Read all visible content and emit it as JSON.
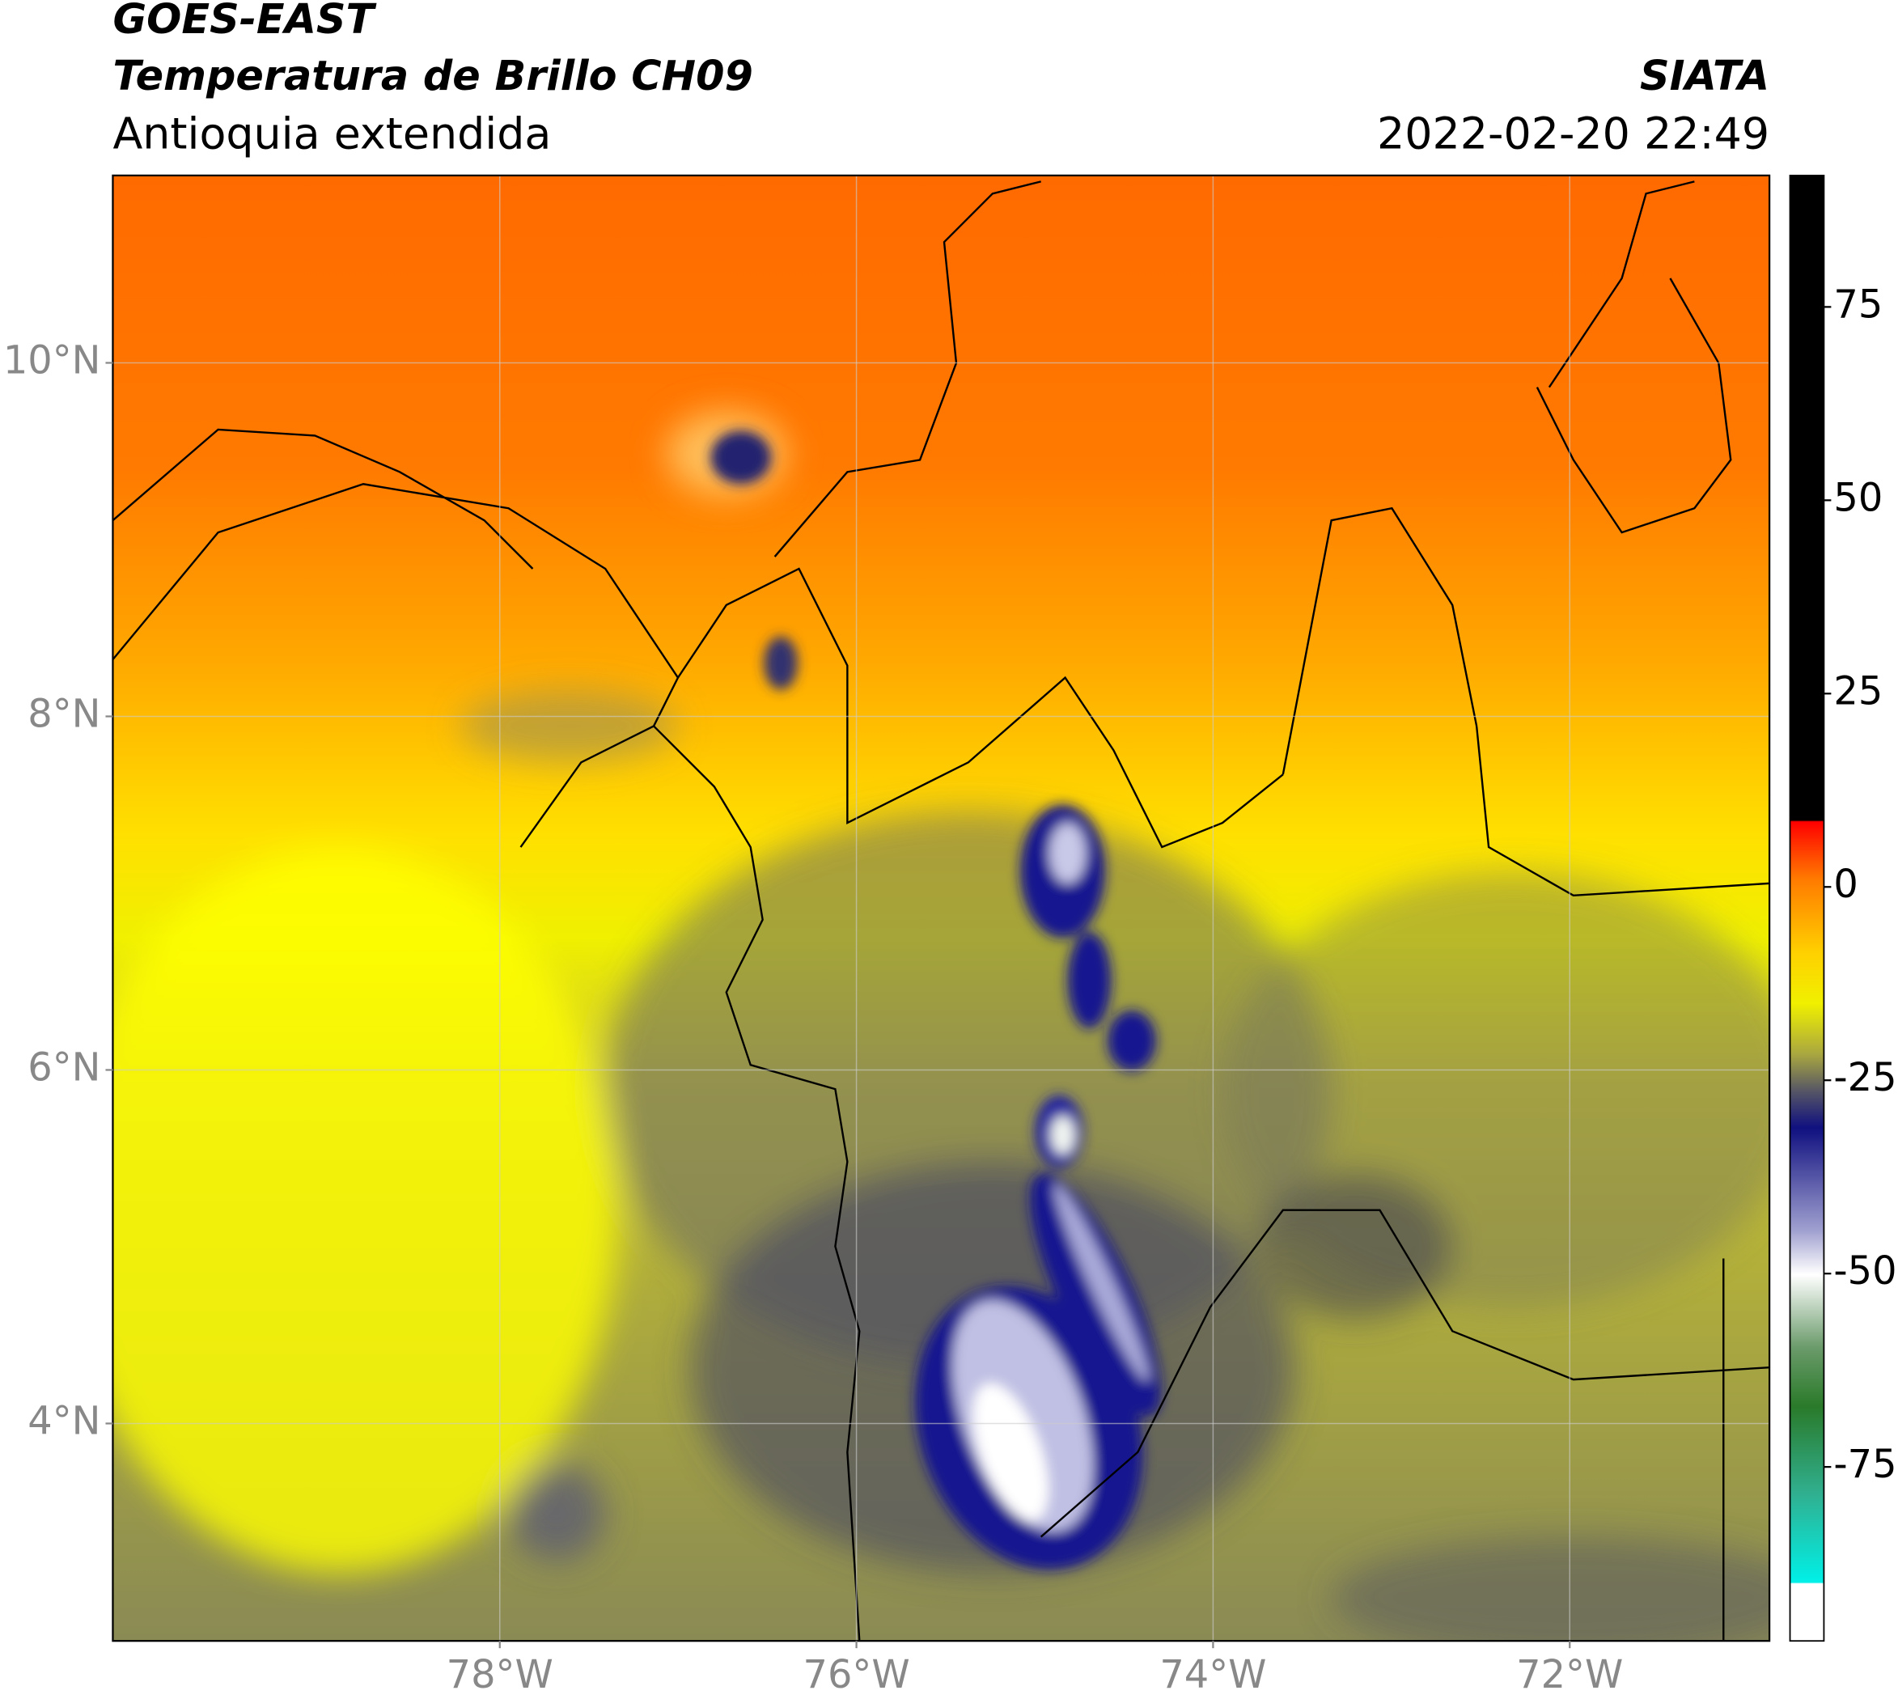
{
  "header": {
    "satellite": "GOES-EAST",
    "product": "Temperatura de Brillo CH09",
    "region": "Antioquia extendida",
    "source": "SIATA",
    "datetime": "2022-02-20 22:49"
  },
  "map": {
    "xlim": [
      -80.17,
      -70.88
    ],
    "ylim": [
      2.77,
      11.06
    ],
    "xticks": [
      {
        "value": -78,
        "label": "78°W"
      },
      {
        "value": -76,
        "label": "76°W"
      },
      {
        "value": -74,
        "label": "74°W"
      },
      {
        "value": -72,
        "label": "72°W"
      }
    ],
    "yticks": [
      {
        "value": 4,
        "label": "4°N"
      },
      {
        "value": 6,
        "label": "6°N"
      },
      {
        "value": 8,
        "label": "8°N"
      },
      {
        "value": 10,
        "label": "10°N"
      }
    ],
    "grid": true
  },
  "colorbar": {
    "lim": [
      -97.5,
      92
    ],
    "ticks": [
      75,
      50,
      25,
      0,
      -25,
      -50,
      -75
    ]
  }
}
